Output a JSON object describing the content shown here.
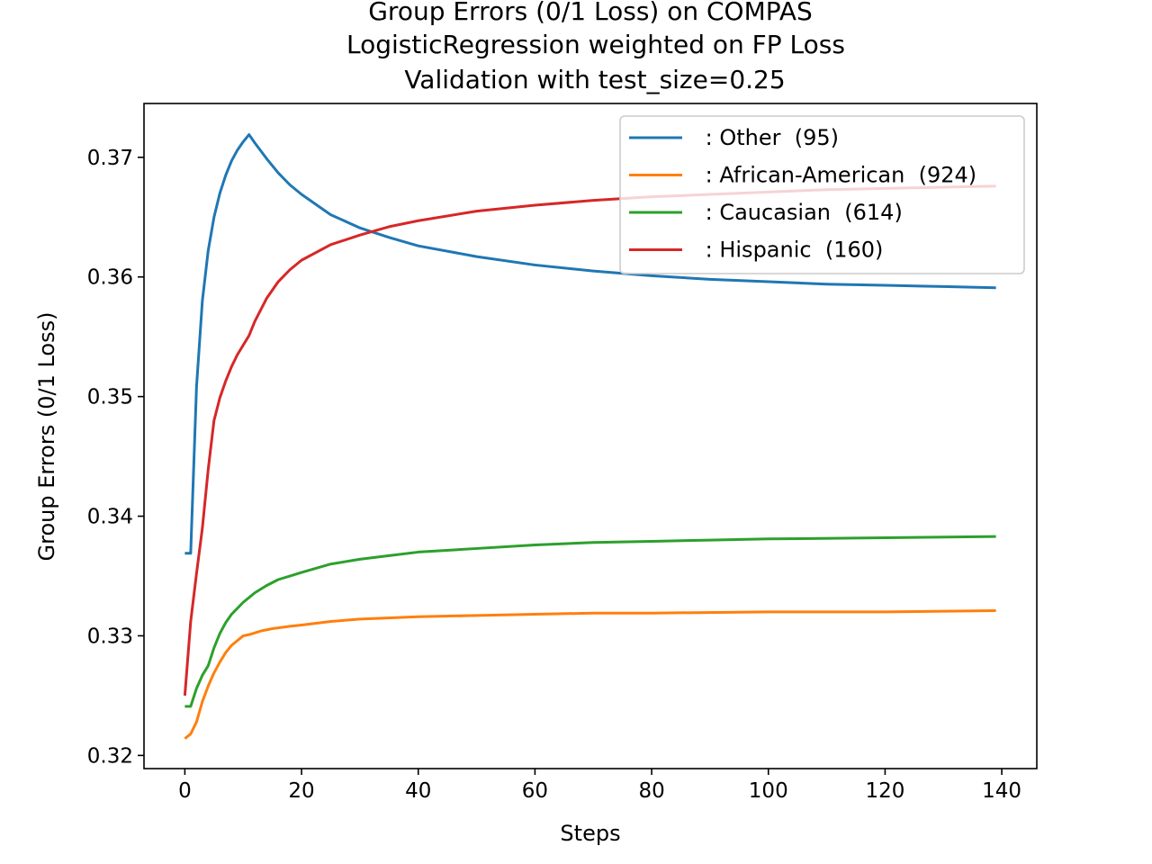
{
  "chart_data": {
    "type": "line",
    "title_lines": [
      "Group Errors (0/1 Loss) on COMPAS",
      "LogisticRegression weighted on FP Loss",
      "Validation with test_size=0.25"
    ],
    "xlabel": "Steps",
    "ylabel": "Group Errors (0/1 Loss)",
    "xlim": [
      -7,
      146
    ],
    "ylim": [
      0.3189,
      0.3745
    ],
    "x_ticks": [
      0,
      20,
      40,
      60,
      80,
      100,
      120,
      140
    ],
    "x_tick_labels": [
      "0",
      "20",
      "40",
      "60",
      "80",
      "100",
      "120",
      "140"
    ],
    "y_ticks": [
      0.32,
      0.33,
      0.34,
      0.35,
      0.36,
      0.37
    ],
    "y_tick_labels": [
      "0.32",
      "0.33",
      "0.34",
      "0.35",
      "0.36",
      "0.37"
    ],
    "grid": false,
    "legend_position": "upper right",
    "series": [
      {
        "name": " : Other  (95)",
        "color": "#1f77b4",
        "points": [
          [
            0,
            0.3369
          ],
          [
            1,
            0.3369
          ],
          [
            2,
            0.3508
          ],
          [
            3,
            0.358
          ],
          [
            4,
            0.3622
          ],
          [
            5,
            0.365
          ],
          [
            6,
            0.367
          ],
          [
            7,
            0.3685
          ],
          [
            8,
            0.3697
          ],
          [
            9,
            0.3706
          ],
          [
            10,
            0.3713
          ],
          [
            11,
            0.3719
          ],
          [
            12,
            0.3712
          ],
          [
            14,
            0.3699
          ],
          [
            16,
            0.3687
          ],
          [
            18,
            0.3677
          ],
          [
            20,
            0.3669
          ],
          [
            25,
            0.3652
          ],
          [
            30,
            0.3641
          ],
          [
            35,
            0.3633
          ],
          [
            40,
            0.3626
          ],
          [
            50,
            0.3617
          ],
          [
            60,
            0.361
          ],
          [
            70,
            0.3605
          ],
          [
            80,
            0.3601
          ],
          [
            90,
            0.3598
          ],
          [
            100,
            0.3596
          ],
          [
            110,
            0.3594
          ],
          [
            120,
            0.3593
          ],
          [
            130,
            0.3592
          ],
          [
            139,
            0.3591
          ]
        ]
      },
      {
        "name": " : African-American  (924)",
        "color": "#ff7f0e",
        "points": [
          [
            0,
            0.3214
          ],
          [
            1,
            0.3218
          ],
          [
            2,
            0.3228
          ],
          [
            3,
            0.3245
          ],
          [
            4,
            0.3258
          ],
          [
            5,
            0.3269
          ],
          [
            6,
            0.3278
          ],
          [
            7,
            0.3286
          ],
          [
            8,
            0.3292
          ],
          [
            9,
            0.3296
          ],
          [
            10,
            0.33
          ],
          [
            11,
            0.3301
          ],
          [
            13,
            0.3304
          ],
          [
            15,
            0.3306
          ],
          [
            18,
            0.3308
          ],
          [
            20,
            0.3309
          ],
          [
            25,
            0.3312
          ],
          [
            30,
            0.3314
          ],
          [
            40,
            0.3316
          ],
          [
            50,
            0.3317
          ],
          [
            60,
            0.3318
          ],
          [
            70,
            0.3319
          ],
          [
            80,
            0.3319
          ],
          [
            100,
            0.332
          ],
          [
            120,
            0.332
          ],
          [
            139,
            0.3321
          ]
        ]
      },
      {
        "name": " : Caucasian  (614)",
        "color": "#2ca02c",
        "points": [
          [
            0,
            0.3241
          ],
          [
            1,
            0.3241
          ],
          [
            2,
            0.3256
          ],
          [
            3,
            0.3267
          ],
          [
            4,
            0.3275
          ],
          [
            5,
            0.329
          ],
          [
            6,
            0.3302
          ],
          [
            7,
            0.3311
          ],
          [
            8,
            0.3318
          ],
          [
            9,
            0.3323
          ],
          [
            10,
            0.3328
          ],
          [
            11,
            0.3332
          ],
          [
            12,
            0.3336
          ],
          [
            14,
            0.3342
          ],
          [
            16,
            0.3347
          ],
          [
            18,
            0.335
          ],
          [
            20,
            0.3353
          ],
          [
            25,
            0.336
          ],
          [
            30,
            0.3364
          ],
          [
            35,
            0.3367
          ],
          [
            40,
            0.337
          ],
          [
            50,
            0.3373
          ],
          [
            60,
            0.3376
          ],
          [
            70,
            0.3378
          ],
          [
            80,
            0.3379
          ],
          [
            90,
            0.338
          ],
          [
            100,
            0.3381
          ],
          [
            120,
            0.3382
          ],
          [
            139,
            0.3383
          ]
        ]
      },
      {
        "name": " : Hispanic  (160)",
        "color": "#d62728",
        "points": [
          [
            0,
            0.325
          ],
          [
            1,
            0.3312
          ],
          [
            2,
            0.3352
          ],
          [
            3,
            0.339
          ],
          [
            4,
            0.3439
          ],
          [
            5,
            0.348
          ],
          [
            6,
            0.3499
          ],
          [
            7,
            0.3513
          ],
          [
            8,
            0.3525
          ],
          [
            9,
            0.3535
          ],
          [
            10,
            0.3543
          ],
          [
            11,
            0.3551
          ],
          [
            12,
            0.3563
          ],
          [
            14,
            0.3582
          ],
          [
            16,
            0.3596
          ],
          [
            18,
            0.3606
          ],
          [
            20,
            0.3614
          ],
          [
            25,
            0.3627
          ],
          [
            30,
            0.3635
          ],
          [
            35,
            0.3642
          ],
          [
            40,
            0.3647
          ],
          [
            50,
            0.3655
          ],
          [
            60,
            0.366
          ],
          [
            70,
            0.3664
          ],
          [
            80,
            0.3667
          ],
          [
            90,
            0.3669
          ],
          [
            100,
            0.3671
          ],
          [
            110,
            0.3673
          ],
          [
            120,
            0.3674
          ],
          [
            130,
            0.3675
          ],
          [
            139,
            0.3676
          ]
        ]
      }
    ]
  }
}
